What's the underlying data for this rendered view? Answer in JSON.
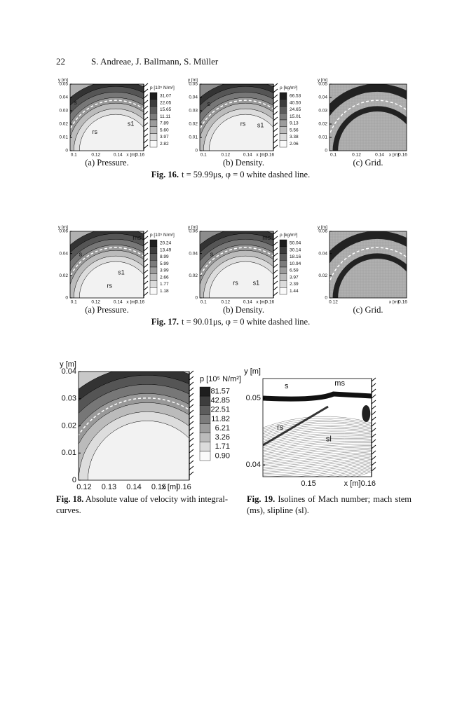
{
  "header": {
    "page": "22",
    "authors": "S. Andreae, J. Ballmann, S. Müller"
  },
  "fig16": {
    "label": "Fig. 16.",
    "caption": "t = 59.99μs, φ = 0 white dashed line.",
    "panels": [
      {
        "ylabel": "y [m]",
        "yticks": [
          "0.05",
          "0.04",
          "0.03",
          "0.02",
          "0.01",
          "0"
        ],
        "xticks": [
          "0.1",
          "0.12",
          "0.14",
          "0.16"
        ],
        "xlabel": "x [m]",
        "colorbar_title": "p [10⁵ N/m²]",
        "colorbar": [
          "31.07",
          "22.05",
          "15.65",
          "11.11",
          "7.89",
          "5.60",
          "3.97",
          "2.82"
        ],
        "labels": [
          "s",
          "rs",
          "s1"
        ],
        "caption": "(a) Pressure."
      },
      {
        "ylabel": "y [m]",
        "yticks": [
          "0.05",
          "0.04",
          "0.03",
          "0.02",
          "0.01",
          "0"
        ],
        "xticks": [
          "0.1",
          "0.12",
          "0.14",
          "0.16"
        ],
        "xlabel": "x [m]",
        "colorbar_title": "ρ [kg/m³]",
        "colorbar": [
          "66.53",
          "40.50",
          "24.65",
          "15.01",
          "9.13",
          "5.56",
          "3.38",
          "2.06"
        ],
        "labels": [
          "s",
          "rs",
          "s1"
        ],
        "caption": "(b) Density."
      },
      {
        "ylabel": "y [m]",
        "yticks": [
          "0.05",
          "0.04",
          "0.03",
          "0.02",
          "0.01",
          "0"
        ],
        "xticks": [
          "0.1",
          "0.12",
          "0.14",
          "0.16"
        ],
        "xlabel": "x [m]",
        "caption": "(c) Grid."
      }
    ]
  },
  "fig17": {
    "label": "Fig. 17.",
    "caption": "t = 90.01μs, φ = 0 white dashed line.",
    "panels": [
      {
        "ylabel": "y [m]",
        "yticks": [
          "0.06",
          "0.04",
          "0.02",
          "0"
        ],
        "xticks": [
          "0.1",
          "0.12",
          "0.14",
          "0.16"
        ],
        "xlabel": "x [m]",
        "colorbar_title": "p [10⁵ N/m²]",
        "colorbar": [
          "20.24",
          "13.49",
          "8.99",
          "5.99",
          "3.99",
          "2.66",
          "1.77",
          "1.18"
        ],
        "labels": [
          "ms",
          "s",
          "s1",
          "rs"
        ],
        "caption": "(a) Pressure."
      },
      {
        "ylabel": "y [m]",
        "yticks": [
          "0.06",
          "0.04",
          "0.02",
          "0"
        ],
        "xticks": [
          "0.1",
          "0.12",
          "0.14",
          "0.16"
        ],
        "xlabel": "x [m]",
        "colorbar_title": "ρ [kg/m³]",
        "colorbar": [
          "50.04",
          "30.14",
          "18.16",
          "10.94",
          "6.59",
          "3.97",
          "2.39",
          "1.44"
        ],
        "labels": [
          "ms",
          "s",
          "rs",
          "s1"
        ],
        "caption": "(b) Density."
      },
      {
        "ylabel": "y [m]",
        "yticks": [
          "0.06",
          "0.04",
          "0.02",
          "0"
        ],
        "xticks": [
          "0.12",
          "0.16"
        ],
        "xlabel": "x [m]",
        "caption": "(c) Grid."
      }
    ]
  },
  "fig18": {
    "label": "Fig. 18.",
    "caption": "Absolute value of velocity with integral-curves.",
    "ylabel": "y [m]",
    "yticks": [
      "0.04",
      "0.03",
      "0.02",
      "0.01",
      "0"
    ],
    "xticks": [
      "0.12",
      "0.13",
      "0.14",
      "0.15",
      "0.16"
    ],
    "xlabel": "x [m]",
    "colorbar_title": "p [10⁵ N/m²]",
    "colorbar": [
      "81.57",
      "42.85",
      "22.51",
      "11.82",
      "6.21",
      "3.26",
      "1.71",
      "0.90"
    ]
  },
  "fig19": {
    "label": "Fig. 19.",
    "caption": "Isolines of Mach number; mach stem (ms), slipline (sl).",
    "ylabel": "y [m]",
    "yticks": [
      "0.05",
      "0.04"
    ],
    "xticks": [
      "0.15",
      "0.16"
    ],
    "xlabel": "x [m]",
    "labels": [
      "s",
      "ms",
      "rs",
      "sl"
    ]
  }
}
